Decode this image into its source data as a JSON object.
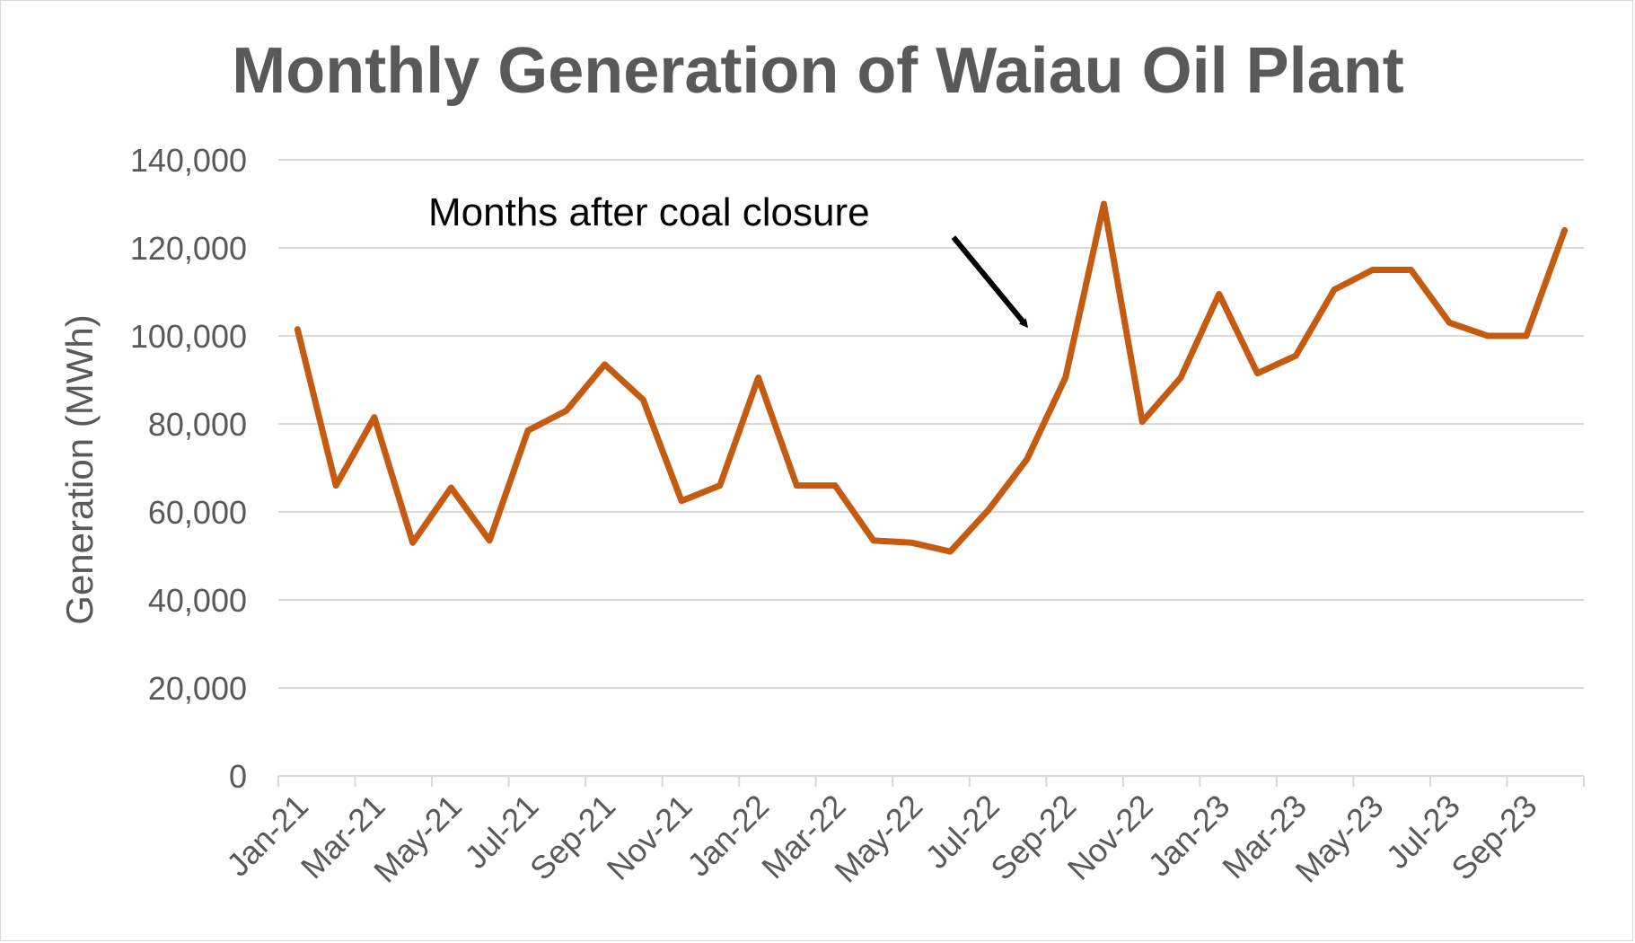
{
  "chart_data": {
    "type": "line",
    "title": "Monthly Generation of Waiau Oil Plant",
    "xlabel": "",
    "ylabel": "Generation (MWh)",
    "ylim": [
      0,
      140000
    ],
    "yticks": [
      0,
      20000,
      40000,
      60000,
      80000,
      100000,
      120000,
      140000
    ],
    "ytick_labels": [
      "0",
      "20,000",
      "40,000",
      "60,000",
      "80,000",
      "100,000",
      "120,000",
      "140,000"
    ],
    "grid": true,
    "legend": "none",
    "x": [
      "Jan-21",
      "Feb-21",
      "Mar-21",
      "Apr-21",
      "May-21",
      "Jun-21",
      "Jul-21",
      "Aug-21",
      "Sep-21",
      "Oct-21",
      "Nov-21",
      "Dec-21",
      "Jan-22",
      "Feb-22",
      "Mar-22",
      "Apr-22",
      "May-22",
      "Jun-22",
      "Jul-22",
      "Aug-22",
      "Sep-22",
      "Oct-22",
      "Nov-22",
      "Dec-22",
      "Jan-23",
      "Feb-23",
      "Mar-23",
      "Apr-23",
      "May-23",
      "Jun-23",
      "Jul-23",
      "Aug-23",
      "Sep-23",
      "Oct-23"
    ],
    "x_tick_labels": [
      "Jan-21",
      "Mar-21",
      "May-21",
      "Jul-21",
      "Sep-21",
      "Nov-21",
      "Jan-22",
      "Mar-22",
      "May-22",
      "Jul-22",
      "Sep-22",
      "Nov-22",
      "Jan-23",
      "Mar-23",
      "May-23",
      "Jul-23",
      "Sep-23"
    ],
    "series": [
      {
        "name": "",
        "values": [
          101500,
          66000,
          81500,
          53000,
          65500,
          53500,
          78500,
          83000,
          93500,
          85500,
          62500,
          66000,
          90500,
          66000,
          66000,
          53500,
          53000,
          51000,
          60500,
          72000,
          90500,
          130000,
          80500,
          90500,
          109500,
          91500,
          95500,
          110500,
          115000,
          115000,
          103000,
          100000,
          100000,
          124000
        ]
      }
    ],
    "line_color": "#C55A11",
    "annotation": {
      "text": "Months after coal closure",
      "arrow_color": "#000000"
    }
  }
}
